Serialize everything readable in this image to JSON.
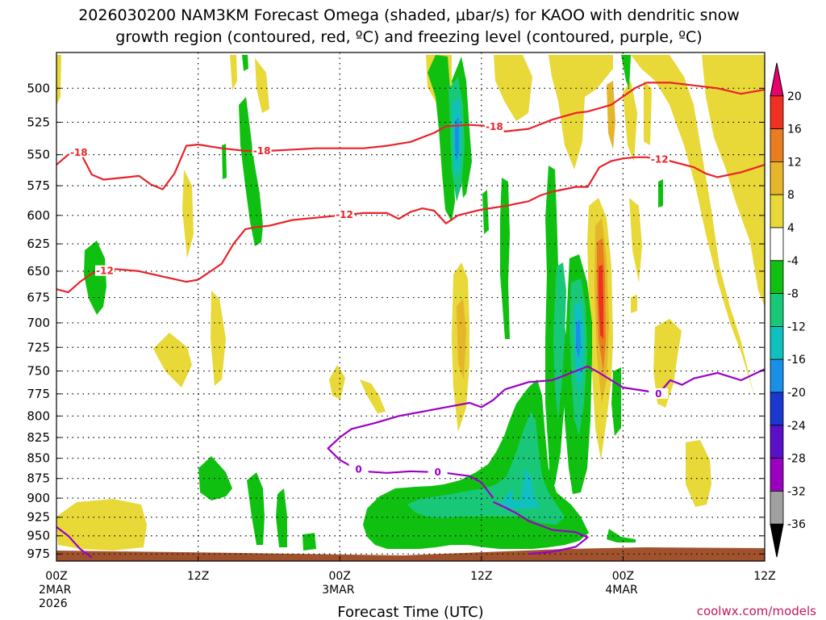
{
  "title_line1": "2026030200 NAM3KM Forecast Omega (shaded, μbar/s) for KAOO with dendritic snow",
  "title_line2": "growth region (contoured, red, ºC) and freezing level (contoured, purple, ºC)",
  "credit": "coolwx.com/models",
  "chart_data": {
    "type": "heatmap",
    "xlabel": "Forecast Time (UTC)",
    "x_ticks": [
      {
        "hour": 0,
        "label": "00Z",
        "sub": [
          "2MAR",
          "2026"
        ]
      },
      {
        "hour": 12,
        "label": "12Z",
        "sub": []
      },
      {
        "hour": 24,
        "label": "00Z",
        "sub": [
          "3MAR"
        ]
      },
      {
        "hour": 36,
        "label": "12Z",
        "sub": []
      },
      {
        "hour": 48,
        "label": "00Z",
        "sub": [
          "4MAR"
        ]
      },
      {
        "hour": 60,
        "label": "12Z",
        "sub": []
      }
    ],
    "xlim": [
      0,
      60
    ],
    "y_ticks": [
      500,
      525,
      550,
      575,
      600,
      625,
      650,
      675,
      700,
      725,
      750,
      775,
      800,
      825,
      850,
      875,
      900,
      925,
      950,
      975
    ],
    "ylim_hpa": [
      475,
      985
    ],
    "y_scale": "log-pressure",
    "grid": true,
    "colorbar": {
      "labels": [
        "20",
        "16",
        "12",
        "8",
        "4",
        "-4",
        "-8",
        "-12",
        "-16",
        "-20",
        "-24",
        "-28",
        "-32",
        "-36"
      ],
      "colors": [
        "#e8006e",
        "#f03020",
        "#e87e20",
        "#e5b52a",
        "#e8d838",
        "#ffffff",
        "#10c010",
        "#18c878",
        "#10c0c0",
        "#1890e8",
        "#1838d0",
        "#5a10c8",
        "#9a00c0",
        "#a0a0a0",
        "#000000"
      ]
    },
    "series": [
      {
        "name": "-18",
        "color": "#e8232a",
        "points": [
          [
            0,
            558
          ],
          [
            1,
            550
          ],
          [
            2,
            548
          ],
          [
            3,
            566
          ],
          [
            4,
            570
          ],
          [
            6,
            568
          ],
          [
            7,
            567
          ],
          [
            8,
            574
          ],
          [
            9,
            578
          ],
          [
            10,
            565
          ],
          [
            11,
            543
          ],
          [
            12,
            542
          ],
          [
            14,
            545
          ],
          [
            16,
            547
          ],
          [
            18,
            547
          ],
          [
            20,
            546
          ],
          [
            22,
            545
          ],
          [
            24,
            545
          ],
          [
            26,
            545
          ],
          [
            28,
            543
          ],
          [
            30,
            540
          ],
          [
            32,
            533
          ],
          [
            33,
            528
          ],
          [
            35,
            527
          ],
          [
            37,
            528
          ],
          [
            38,
            532
          ],
          [
            40,
            530
          ],
          [
            42,
            523
          ],
          [
            44,
            518
          ],
          [
            45,
            517
          ],
          [
            47,
            512
          ],
          [
            48,
            506
          ],
          [
            49,
            500
          ],
          [
            50,
            496
          ],
          [
            52,
            496
          ],
          [
            54,
            498
          ],
          [
            56,
            500
          ],
          [
            58,
            504
          ],
          [
            60,
            501
          ]
        ],
        "labels": [
          {
            "hour": 1.9,
            "text": "-18"
          },
          {
            "hour": 17.4,
            "text": "-18"
          },
          {
            "hour": 37.1,
            "text": "-18"
          }
        ]
      },
      {
        "name": "-12",
        "color": "#e8232a",
        "points": [
          [
            0,
            667
          ],
          [
            1,
            670
          ],
          [
            2,
            660
          ],
          [
            3,
            652
          ],
          [
            5,
            648
          ],
          [
            7,
            650
          ],
          [
            9,
            655
          ],
          [
            11,
            660
          ],
          [
            12,
            658
          ],
          [
            14,
            643
          ],
          [
            15,
            625
          ],
          [
            16,
            612
          ],
          [
            17,
            610
          ],
          [
            18,
            609
          ],
          [
            20,
            604
          ],
          [
            22,
            602
          ],
          [
            24,
            600
          ],
          [
            26,
            598
          ],
          [
            28,
            598
          ],
          [
            29,
            603
          ],
          [
            30,
            597
          ],
          [
            31,
            594
          ],
          [
            32,
            596
          ],
          [
            33,
            607
          ],
          [
            34,
            600
          ],
          [
            36,
            595
          ],
          [
            38,
            592
          ],
          [
            40,
            588
          ],
          [
            41,
            583
          ],
          [
            42,
            580
          ],
          [
            44,
            576
          ],
          [
            45,
            576
          ],
          [
            46,
            560
          ],
          [
            47,
            555
          ],
          [
            48,
            553
          ],
          [
            49,
            552
          ],
          [
            50,
            552
          ],
          [
            52,
            555
          ],
          [
            54,
            560
          ],
          [
            55,
            565
          ],
          [
            56,
            568
          ],
          [
            58,
            564
          ],
          [
            60,
            558
          ]
        ],
        "labels": [
          {
            "hour": 4.1,
            "text": "-12"
          },
          {
            "hour": 24.4,
            "text": "-12"
          },
          {
            "hour": 51.1,
            "text": "-12"
          }
        ]
      },
      {
        "name": "0",
        "color": "#9a00c8",
        "points": [
          [
            37,
            900
          ],
          [
            36,
            880
          ],
          [
            35,
            872
          ],
          [
            34,
            870
          ],
          [
            33,
            868
          ],
          [
            32,
            867
          ],
          [
            30,
            866
          ],
          [
            28,
            868
          ],
          [
            26,
            866
          ],
          [
            25,
            860
          ],
          [
            24,
            852
          ],
          [
            23,
            838
          ],
          [
            24,
            825
          ],
          [
            25,
            815
          ],
          [
            27,
            808
          ],
          [
            29,
            800
          ],
          [
            31,
            795
          ],
          [
            33,
            790
          ],
          [
            35,
            785
          ],
          [
            36,
            790
          ],
          [
            37,
            782
          ],
          [
            38,
            770
          ],
          [
            40,
            762
          ],
          [
            42,
            760
          ],
          [
            43,
            755
          ],
          [
            44,
            750
          ],
          [
            45,
            745
          ],
          [
            46,
            752
          ],
          [
            47,
            760
          ],
          [
            48,
            768
          ],
          [
            50,
            772
          ],
          [
            51,
            775
          ],
          [
            52,
            760
          ],
          [
            53,
            765
          ],
          [
            54,
            758
          ],
          [
            56,
            752
          ],
          [
            58,
            760
          ],
          [
            60,
            748
          ]
        ],
        "labels": [
          {
            "hour": 32.3,
            "text": "0"
          },
          {
            "hour": 25.6,
            "text": "0"
          },
          {
            "hour": 51.0,
            "text": "0"
          }
        ]
      },
      {
        "name": "0",
        "color": "#9a00c8",
        "points": [
          [
            0,
            938
          ],
          [
            1,
            950
          ],
          [
            2,
            968
          ],
          [
            3,
            980
          ]
        ]
      },
      {
        "name": "0",
        "color": "#9a00c8",
        "points": [
          [
            40,
            975
          ],
          [
            42,
            972
          ],
          [
            44,
            965
          ],
          [
            45,
            952
          ],
          [
            44,
            945
          ],
          [
            42,
            942
          ],
          [
            40,
            930
          ],
          [
            39,
            920
          ],
          [
            38,
            912
          ],
          [
            37,
            905
          ]
        ]
      }
    ]
  }
}
